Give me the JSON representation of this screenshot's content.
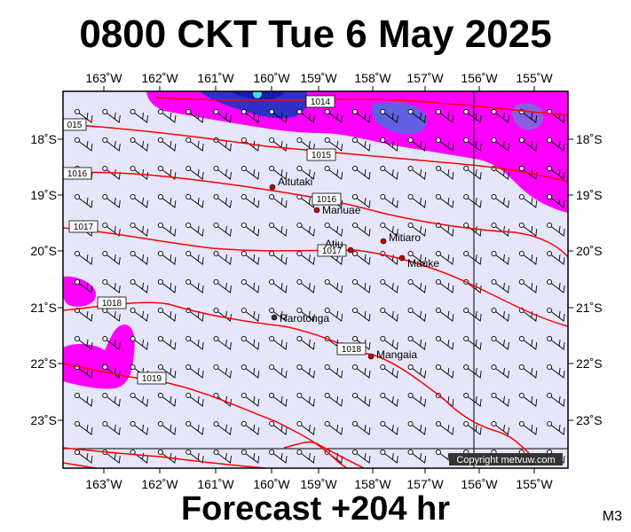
{
  "header": {
    "title": "0800 CKT Tue 6 May 2025"
  },
  "footer": {
    "forecast_label": "Forecast +204 hr",
    "map_code": "M3"
  },
  "copyright": "Copyright metvuw.com",
  "axes": {
    "longitudes_top": [
      "163˚W",
      "162˚W",
      "161˚W",
      "160˚W",
      "159˚W",
      "158˚W",
      "157˚W",
      "156˚W",
      "155˚W"
    ],
    "longitudes_bottom": [
      "163˚W",
      "162˚W",
      "161˚W",
      "160˚W",
      "159˚W",
      "158˚W",
      "157˚W",
      "156˚W",
      "155˚W"
    ],
    "latitudes_left": [
      "18˚S",
      "19˚S",
      "20˚S",
      "21˚S",
      "22˚S",
      "23˚S"
    ],
    "latitudes_right": [
      "18˚S",
      "19˚S",
      "20˚S",
      "21˚S",
      "22˚S",
      "23˚S"
    ]
  },
  "places": [
    {
      "name": "Aitutaki"
    },
    {
      "name": "Manuae"
    },
    {
      "name": "Mitiaro"
    },
    {
      "name": "Atiu"
    },
    {
      "name": "Mauke"
    },
    {
      "name": "Rarotonga"
    },
    {
      "name": "Mangaia"
    }
  ],
  "isobars": [
    {
      "label": "1014"
    },
    {
      "label": "015"
    },
    {
      "label": "1015"
    },
    {
      "label": "1016"
    },
    {
      "label": "1016"
    },
    {
      "label": "1017"
    },
    {
      "label": "1017"
    },
    {
      "label": "1018"
    },
    {
      "label": "1018"
    },
    {
      "label": "1019"
    }
  ],
  "colors": {
    "background": "#e6e6fa",
    "rain_light": "#ff00ff",
    "rain_heavy": "#1a1ab0",
    "isobar": "#ff0000",
    "place_marker": "#cc0000"
  },
  "icons": {
    "wind_barb": "wind-barb-icon"
  }
}
